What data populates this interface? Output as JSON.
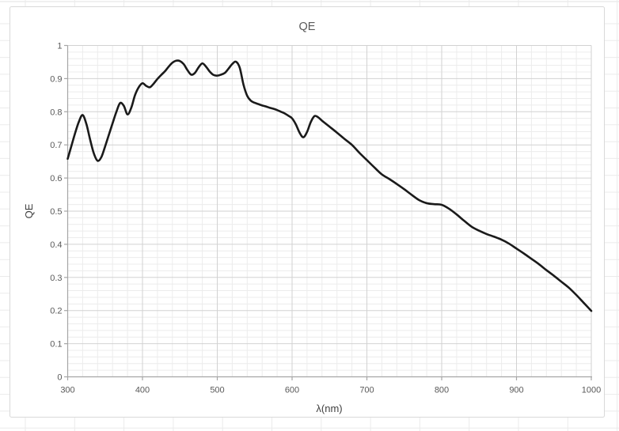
{
  "window": {
    "background": "#ffffff"
  },
  "chart_data": {
    "type": "line",
    "title": "QE",
    "xlabel": "λ(nm)",
    "ylabel": "QE",
    "xlim": [
      300,
      1000
    ],
    "ylim": [
      0,
      1
    ],
    "x_ticks": [
      300,
      400,
      500,
      600,
      700,
      800,
      900,
      1000
    ],
    "y_ticks": [
      0,
      0.1,
      0.2,
      0.3,
      0.4,
      0.5,
      0.6,
      0.7,
      0.8,
      0.9,
      1
    ],
    "x_minor_step": 20,
    "y_minor_step": 0.02,
    "grid": "major+minor",
    "legend": "none",
    "colors": {
      "series": "#1a1a1a",
      "major_grid": "#d2d2d2",
      "minor_grid": "#ececec",
      "axis": "#a6a6a6",
      "tick_label": "#595959",
      "title": "#595959",
      "axis_title": "#404040",
      "frame_border": "#d9d9d9",
      "frame_fill": "#ffffff",
      "artifact": "#ebebeb"
    },
    "series": [
      {
        "name": "QE",
        "x": [
          300,
          305,
          310,
          315,
          320,
          325,
          330,
          335,
          340,
          345,
          350,
          355,
          360,
          365,
          370,
          375,
          380,
          385,
          390,
          395,
          400,
          405,
          410,
          415,
          420,
          425,
          430,
          435,
          440,
          445,
          450,
          455,
          460,
          465,
          470,
          475,
          480,
          485,
          490,
          495,
          500,
          505,
          510,
          515,
          520,
          525,
          530,
          535,
          540,
          545,
          550,
          555,
          560,
          565,
          570,
          575,
          580,
          585,
          590,
          595,
          600,
          605,
          610,
          615,
          620,
          625,
          630,
          635,
          640,
          645,
          650,
          660,
          670,
          680,
          690,
          700,
          710,
          720,
          730,
          740,
          750,
          760,
          770,
          780,
          790,
          800,
          810,
          820,
          830,
          840,
          850,
          860,
          870,
          880,
          890,
          900,
          910,
          920,
          930,
          940,
          950,
          960,
          970,
          980,
          990,
          1000
        ],
        "y": [
          0.658,
          0.697,
          0.736,
          0.77,
          0.79,
          0.763,
          0.716,
          0.674,
          0.652,
          0.663,
          0.695,
          0.73,
          0.765,
          0.799,
          0.826,
          0.818,
          0.792,
          0.812,
          0.85,
          0.874,
          0.886,
          0.878,
          0.874,
          0.885,
          0.899,
          0.911,
          0.922,
          0.936,
          0.948,
          0.954,
          0.953,
          0.944,
          0.926,
          0.912,
          0.917,
          0.934,
          0.946,
          0.936,
          0.921,
          0.911,
          0.909,
          0.912,
          0.917,
          0.93,
          0.944,
          0.951,
          0.933,
          0.882,
          0.848,
          0.833,
          0.827,
          0.823,
          0.819,
          0.816,
          0.812,
          0.809,
          0.805,
          0.8,
          0.795,
          0.788,
          0.78,
          0.762,
          0.737,
          0.723,
          0.739,
          0.769,
          0.787,
          0.783,
          0.773,
          0.764,
          0.755,
          0.737,
          0.718,
          0.7,
          0.676,
          0.654,
          0.632,
          0.611,
          0.597,
          0.582,
          0.566,
          0.549,
          0.533,
          0.524,
          0.521,
          0.519,
          0.507,
          0.49,
          0.471,
          0.453,
          0.441,
          0.431,
          0.423,
          0.414,
          0.402,
          0.387,
          0.372,
          0.356,
          0.34,
          0.322,
          0.305,
          0.287,
          0.269,
          0.247,
          0.223,
          0.199
        ]
      }
    ]
  }
}
